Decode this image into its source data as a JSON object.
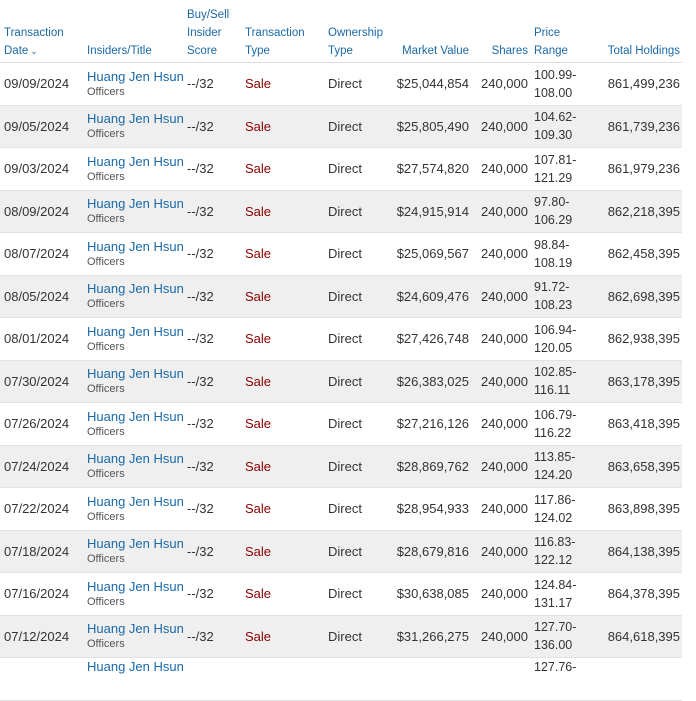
{
  "columns": {
    "date": [
      "Transaction",
      "Date"
    ],
    "insider": "Insiders/Title",
    "score": [
      "Buy/Sell",
      "Insider",
      "Score"
    ],
    "type": [
      "Transaction",
      "Type"
    ],
    "ownership": [
      "Ownership",
      "Type"
    ],
    "market_value": "Market Value",
    "shares": "Shares",
    "price": [
      "Price",
      "Range"
    ],
    "holdings": "Total Holdings"
  },
  "sort_icon": "chevron-down-icon",
  "colors": {
    "link": "#1a69a8",
    "sale": "#8b0000",
    "alt_row": "#efefef"
  },
  "rows": [
    {
      "date": "09/09/2024",
      "name": "Huang Jen Hsun",
      "title": "Officers",
      "score": "--/32",
      "type": "Sale",
      "ownership": "Direct",
      "value": "$25,044,854",
      "shares": "240,000",
      "price_low": "100.99-",
      "price_high": "108.00",
      "holdings": "861,499,236"
    },
    {
      "date": "09/05/2024",
      "name": "Huang Jen Hsun",
      "title": "Officers",
      "score": "--/32",
      "type": "Sale",
      "ownership": "Direct",
      "value": "$25,805,490",
      "shares": "240,000",
      "price_low": "104.62-",
      "price_high": "109.30",
      "holdings": "861,739,236"
    },
    {
      "date": "09/03/2024",
      "name": "Huang Jen Hsun",
      "title": "Officers",
      "score": "--/32",
      "type": "Sale",
      "ownership": "Direct",
      "value": "$27,574,820",
      "shares": "240,000",
      "price_low": "107.81-",
      "price_high": "121.29",
      "holdings": "861,979,236"
    },
    {
      "date": "08/09/2024",
      "name": "Huang Jen Hsun",
      "title": "Officers",
      "score": "--/32",
      "type": "Sale",
      "ownership": "Direct",
      "value": "$24,915,914",
      "shares": "240,000",
      "price_low": "97.80-",
      "price_high": "106.29",
      "holdings": "862,218,395"
    },
    {
      "date": "08/07/2024",
      "name": "Huang Jen Hsun",
      "title": "Officers",
      "score": "--/32",
      "type": "Sale",
      "ownership": "Direct",
      "value": "$25,069,567",
      "shares": "240,000",
      "price_low": "98.84-",
      "price_high": "108.19",
      "holdings": "862,458,395"
    },
    {
      "date": "08/05/2024",
      "name": "Huang Jen Hsun",
      "title": "Officers",
      "score": "--/32",
      "type": "Sale",
      "ownership": "Direct",
      "value": "$24,609,476",
      "shares": "240,000",
      "price_low": "91.72-",
      "price_high": "108.23",
      "holdings": "862,698,395"
    },
    {
      "date": "08/01/2024",
      "name": "Huang Jen Hsun",
      "title": "Officers",
      "score": "--/32",
      "type": "Sale",
      "ownership": "Direct",
      "value": "$27,426,748",
      "shares": "240,000",
      "price_low": "106.94-",
      "price_high": "120.05",
      "holdings": "862,938,395"
    },
    {
      "date": "07/30/2024",
      "name": "Huang Jen Hsun",
      "title": "Officers",
      "score": "--/32",
      "type": "Sale",
      "ownership": "Direct",
      "value": "$26,383,025",
      "shares": "240,000",
      "price_low": "102.85-",
      "price_high": "116.11",
      "holdings": "863,178,395"
    },
    {
      "date": "07/26/2024",
      "name": "Huang Jen Hsun",
      "title": "Officers",
      "score": "--/32",
      "type": "Sale",
      "ownership": "Direct",
      "value": "$27,216,126",
      "shares": "240,000",
      "price_low": "106.79-",
      "price_high": "116.22",
      "holdings": "863,418,395"
    },
    {
      "date": "07/24/2024",
      "name": "Huang Jen Hsun",
      "title": "Officers",
      "score": "--/32",
      "type": "Sale",
      "ownership": "Direct",
      "value": "$28,869,762",
      "shares": "240,000",
      "price_low": "113.85-",
      "price_high": "124.20",
      "holdings": "863,658,395"
    },
    {
      "date": "07/22/2024",
      "name": "Huang Jen Hsun",
      "title": "Officers",
      "score": "--/32",
      "type": "Sale",
      "ownership": "Direct",
      "value": "$28,954,933",
      "shares": "240,000",
      "price_low": "117.86-",
      "price_high": "124.02",
      "holdings": "863,898,395"
    },
    {
      "date": "07/18/2024",
      "name": "Huang Jen Hsun",
      "title": "Officers",
      "score": "--/32",
      "type": "Sale",
      "ownership": "Direct",
      "value": "$28,679,816",
      "shares": "240,000",
      "price_low": "116.83-",
      "price_high": "122.12",
      "holdings": "864,138,395"
    },
    {
      "date": "07/16/2024",
      "name": "Huang Jen Hsun",
      "title": "Officers",
      "score": "--/32",
      "type": "Sale",
      "ownership": "Direct",
      "value": "$30,638,085",
      "shares": "240,000",
      "price_low": "124.84-",
      "price_high": "131.17",
      "holdings": "864,378,395"
    },
    {
      "date": "07/12/2024",
      "name": "Huang Jen Hsun",
      "title": "Officers",
      "score": "--/32",
      "type": "Sale",
      "ownership": "Direct",
      "value": "$31,266,275",
      "shares": "240,000",
      "price_low": "127.70-",
      "price_high": "136.00",
      "holdings": "864,618,395"
    },
    {
      "date": "",
      "name": "Huang Jen Hsun",
      "title": "",
      "score": "",
      "type": "",
      "ownership": "",
      "value": "",
      "shares": "",
      "price_low": "127.76-",
      "price_high": "",
      "holdings": ""
    }
  ]
}
